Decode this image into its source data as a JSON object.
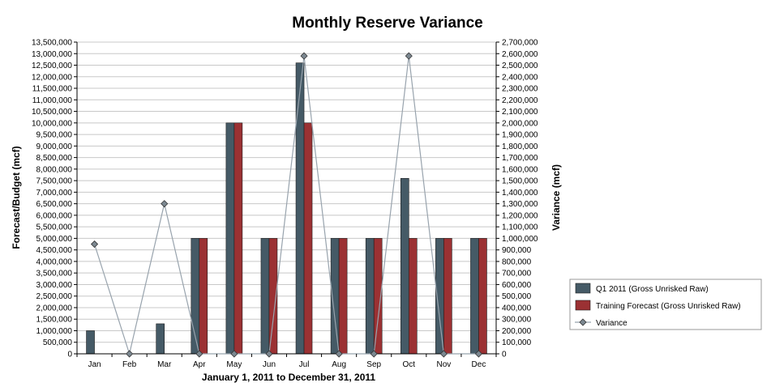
{
  "chart_data": {
    "type": "bar",
    "title": "Monthly Reserve Variance",
    "xlabel": "January 1, 2011 to December 31, 2011",
    "ylabel": "Forecast/Budget (mcf)",
    "y2label": "Variance (mcf)",
    "categories": [
      "Jan",
      "Feb",
      "Mar",
      "Apr",
      "May",
      "Jun",
      "Jul",
      "Aug",
      "Sep",
      "Oct",
      "Nov",
      "Dec"
    ],
    "ylim": [
      0,
      13500000
    ],
    "y2lim": [
      0,
      2700000
    ],
    "y_ticks": [
      "0",
      "500,000",
      "1,000,000",
      "1,500,000",
      "2,000,000",
      "2,500,000",
      "3,000,000",
      "3,500,000",
      "4,000,000",
      "4,500,000",
      "5,000,000",
      "5,500,000",
      "6,000,000",
      "6,500,000",
      "7,000,000",
      "7,500,000",
      "8,000,000",
      "8,500,000",
      "9,000,000",
      "9,500,000",
      "10,000,000",
      "10,500,000",
      "11,000,000",
      "11,500,000",
      "12,000,000",
      "12,500,000",
      "13,000,000",
      "13,500,000"
    ],
    "y2_ticks": [
      "0",
      "100,000",
      "200,000",
      "300,000",
      "400,000",
      "500,000",
      "600,000",
      "700,000",
      "800,000",
      "900,000",
      "1,000,000",
      "1,100,000",
      "1,200,000",
      "1,300,000",
      "1,400,000",
      "1,500,000",
      "1,600,000",
      "1,700,000",
      "1,800,000",
      "1,900,000",
      "2,000,000",
      "2,100,000",
      "2,200,000",
      "2,300,000",
      "2,400,000",
      "2,500,000",
      "2,600,000",
      "2,700,000"
    ],
    "grid": true,
    "legend_position": "right",
    "series": [
      {
        "name": "Q1 2011 (Gross Unrisked Raw)",
        "type": "bar",
        "axis": "left",
        "color": "#455a66",
        "values": [
          1000000,
          0,
          1300000,
          5000000,
          10000000,
          5000000,
          12600000,
          5000000,
          5000000,
          7600000,
          5000000,
          5000000
        ]
      },
      {
        "name": "Training Forecast (Gross Unrisked Raw)",
        "type": "bar",
        "axis": "left",
        "color": "#9b3133",
        "values": [
          0,
          0,
          0,
          5000000,
          10000000,
          5000000,
          10000000,
          5000000,
          5000000,
          5000000,
          5000000,
          5000000
        ]
      },
      {
        "name": "Variance",
        "type": "line",
        "axis": "right",
        "color": "#98a3ad",
        "marker_color": "#7c8891",
        "values": [
          950000,
          0,
          1300000,
          0,
          0,
          0,
          2580000,
          0,
          0,
          2580000,
          0,
          0
        ]
      }
    ]
  }
}
